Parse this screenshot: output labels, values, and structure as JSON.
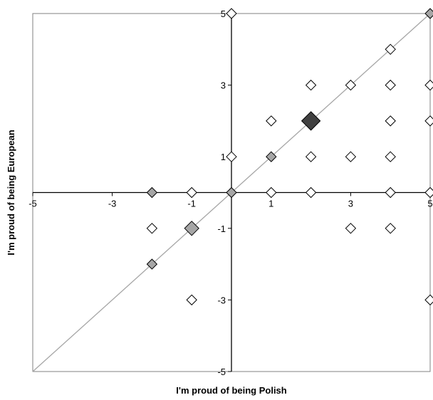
{
  "chart_data": {
    "type": "scatter",
    "xlabel": "I'm proud of being Polish",
    "ylabel": "I'm proud of being European",
    "xlim": [
      -5,
      5
    ],
    "ylim": [
      -5,
      5
    ],
    "x_ticks": [
      -5,
      -3,
      -1,
      1,
      3,
      5
    ],
    "y_ticks": [
      -5,
      -3,
      -1,
      1,
      3,
      5
    ],
    "grid": false,
    "diagonal_line": {
      "from": [
        -5,
        -5
      ],
      "to": [
        5,
        5
      ],
      "color": "#a6a6a6"
    },
    "points": [
      {
        "x": 0,
        "y": 5,
        "style": "open"
      },
      {
        "x": 5,
        "y": 5,
        "style": "gray"
      },
      {
        "x": 4,
        "y": 4,
        "style": "open"
      },
      {
        "x": 2,
        "y": 3,
        "style": "open"
      },
      {
        "x": 3,
        "y": 3,
        "style": "open"
      },
      {
        "x": 4,
        "y": 3,
        "style": "open"
      },
      {
        "x": 5,
        "y": 3,
        "style": "open"
      },
      {
        "x": 1,
        "y": 2,
        "style": "open"
      },
      {
        "x": 2,
        "y": 2,
        "style": "dark"
      },
      {
        "x": 4,
        "y": 2,
        "style": "open"
      },
      {
        "x": 5,
        "y": 2,
        "style": "open"
      },
      {
        "x": 0,
        "y": 1,
        "style": "open"
      },
      {
        "x": 1,
        "y": 1,
        "style": "gray"
      },
      {
        "x": 2,
        "y": 1,
        "style": "open"
      },
      {
        "x": 3,
        "y": 1,
        "style": "open"
      },
      {
        "x": 4,
        "y": 1,
        "style": "open"
      },
      {
        "x": -2,
        "y": 0,
        "style": "gray"
      },
      {
        "x": -1,
        "y": 0,
        "style": "open"
      },
      {
        "x": 0,
        "y": 0,
        "style": "gray"
      },
      {
        "x": 1,
        "y": 0,
        "style": "open"
      },
      {
        "x": 2,
        "y": 0,
        "style": "open"
      },
      {
        "x": 4,
        "y": 0,
        "style": "open"
      },
      {
        "x": 5,
        "y": 0,
        "style": "open"
      },
      {
        "x": -2,
        "y": -1,
        "style": "open"
      },
      {
        "x": -1,
        "y": -1,
        "style": "gray-large"
      },
      {
        "x": 3,
        "y": -1,
        "style": "open"
      },
      {
        "x": 4,
        "y": -1,
        "style": "open"
      },
      {
        "x": -2,
        "y": -2,
        "style": "gray"
      },
      {
        "x": -1,
        "y": -3,
        "style": "open"
      },
      {
        "x": 5,
        "y": -3,
        "style": "open"
      }
    ],
    "colors": {
      "open_fill": "#ffffff",
      "gray_fill": "#a6a6a6",
      "dark_fill": "#404040",
      "stroke": "#000000"
    }
  }
}
